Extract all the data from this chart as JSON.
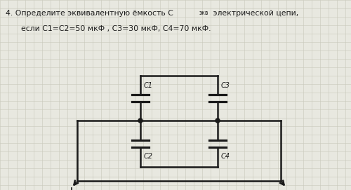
{
  "title_line1": "4. Определите эквивалентную емкость С",
  "title_ekv": "экв",
  "title_line1_end": " электрической цепи,",
  "title_line2": "если С1=С2=50 мкФ , С3=30 мкФ, С4=70 мкФ.",
  "bg_color": "#e8e8e0",
  "grid_color": "#c8c8bc",
  "line_color": "#1a1a1a",
  "text_color": "#1a1a1a"
}
